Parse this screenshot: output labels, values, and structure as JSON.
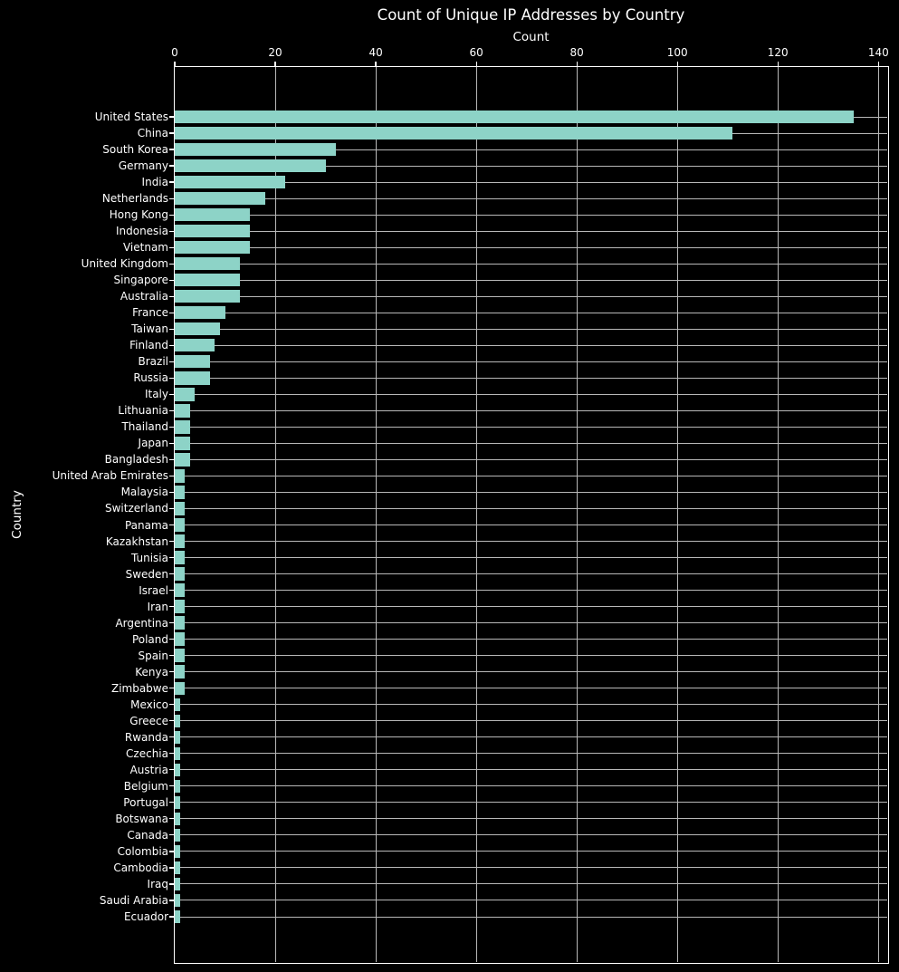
{
  "chart_data": {
    "type": "bar",
    "orientation": "horizontal",
    "title": "Count of Unique IP Addresses by Country",
    "xlabel": "Count",
    "ylabel": "Country",
    "x_axis_position": "top",
    "xlim": [
      0,
      141.75
    ],
    "xticks": [
      0,
      20,
      40,
      60,
      80,
      100,
      120,
      140
    ],
    "grid": true,
    "legend": "none",
    "colors": {
      "background": "#000000",
      "bar": "#8dd3c7",
      "grid": "#b8b8b8",
      "axis": "#ffffff",
      "text": "#ffffff"
    },
    "categories": [
      "United States",
      "China",
      "South Korea",
      "Germany",
      "India",
      "Netherlands",
      "Hong Kong",
      "Indonesia",
      "Vietnam",
      "United Kingdom",
      "Singapore",
      "Australia",
      "France",
      "Taiwan",
      "Finland",
      "Brazil",
      "Russia",
      "Italy",
      "Lithuania",
      "Thailand",
      "Japan",
      "Bangladesh",
      "United Arab Emirates",
      "Malaysia",
      "Switzerland",
      "Panama",
      "Kazakhstan",
      "Tunisia",
      "Sweden",
      "Israel",
      "Iran",
      "Argentina",
      "Poland",
      "Spain",
      "Kenya",
      "Zimbabwe",
      "Mexico",
      "Greece",
      "Rwanda",
      "Czechia",
      "Austria",
      "Belgium",
      "Portugal",
      "Botswana",
      "Canada",
      "Colombia",
      "Cambodia",
      "Iraq",
      "Saudi Arabia",
      "Ecuador"
    ],
    "values": [
      135,
      111,
      32,
      30,
      22,
      18,
      15,
      15,
      15,
      13,
      13,
      13,
      10,
      9,
      8,
      7,
      7,
      4,
      3,
      3,
      3,
      3,
      2,
      2,
      2,
      2,
      2,
      2,
      2,
      2,
      2,
      2,
      2,
      2,
      2,
      2,
      1,
      1,
      1,
      1,
      1,
      1,
      1,
      1,
      1,
      1,
      1,
      1,
      1,
      1
    ]
  }
}
